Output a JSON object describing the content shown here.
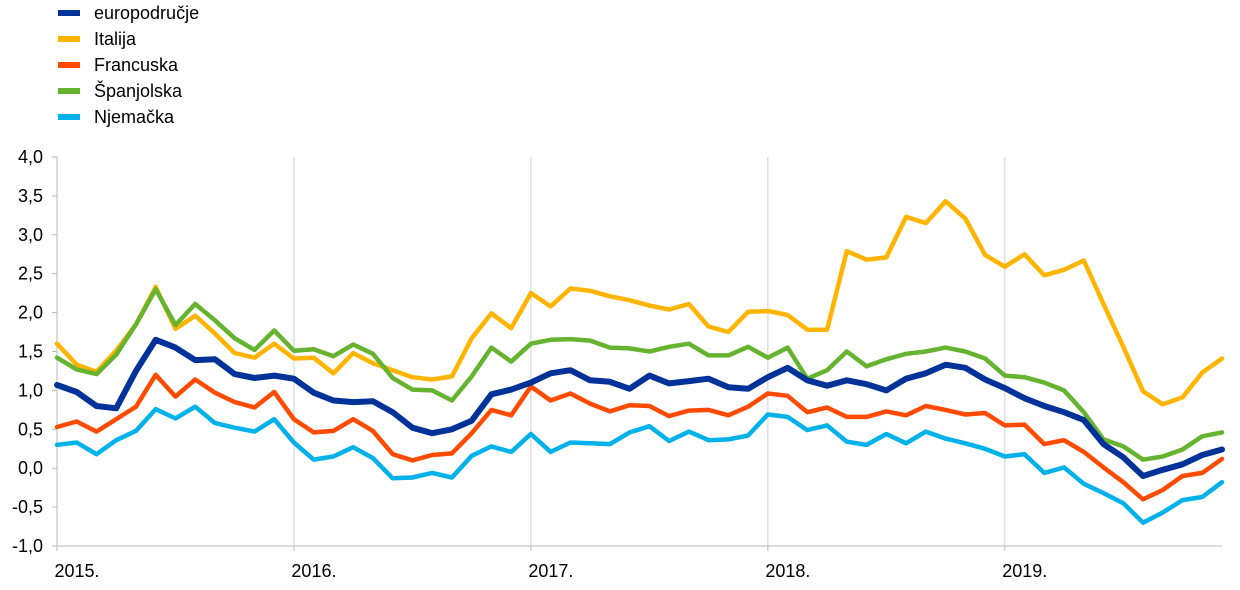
{
  "chart_data": {
    "type": "line",
    "title": "",
    "xlabel": "",
    "ylabel": "",
    "ylim": [
      -1.0,
      4.0
    ],
    "yticks": [
      "-1,0",
      "-0,5",
      "0,0",
      "0,5",
      "1,0",
      "1,5",
      "2,0",
      "2,5",
      "3,0",
      "3,5",
      "4,0"
    ],
    "xticks": [
      "2015.",
      "2016.",
      "2017.",
      "2018.",
      "2019."
    ],
    "grid": "vertical at year starts",
    "legend_position": "top-left",
    "x_period": "monthly, January 2015 to December 2019",
    "series": [
      {
        "name": "europodručje",
        "color": "#003299",
        "values": [
          1.07,
          0.98,
          0.8,
          0.77,
          1.25,
          1.65,
          1.55,
          1.39,
          1.4,
          1.21,
          1.16,
          1.19,
          1.15,
          0.97,
          0.87,
          0.85,
          0.86,
          0.72,
          0.52,
          0.45,
          0.5,
          0.61,
          0.95,
          1.01,
          1.1,
          1.22,
          1.26,
          1.13,
          1.11,
          1.02,
          1.19,
          1.09,
          1.12,
          1.15,
          1.04,
          1.02,
          1.17,
          1.29,
          1.13,
          1.06,
          1.13,
          1.08,
          1.0,
          1.15,
          1.22,
          1.33,
          1.29,
          1.14,
          1.03,
          0.9,
          0.8,
          0.72,
          0.62,
          0.31,
          0.14,
          -0.1,
          -0.02,
          0.05,
          0.17,
          0.24
        ]
      },
      {
        "name": "Italija",
        "color": "#FFB400",
        "values": [
          1.6,
          1.33,
          1.24,
          1.51,
          1.85,
          2.33,
          1.79,
          1.96,
          1.73,
          1.48,
          1.42,
          1.6,
          1.41,
          1.42,
          1.22,
          1.48,
          1.35,
          1.26,
          1.17,
          1.14,
          1.18,
          1.67,
          1.99,
          1.8,
          2.25,
          2.08,
          2.31,
          2.28,
          2.21,
          2.16,
          2.09,
          2.04,
          2.11,
          1.82,
          1.75,
          2.01,
          2.02,
          1.97,
          1.78,
          1.78,
          2.79,
          2.68,
          2.71,
          3.23,
          3.15,
          3.43,
          3.21,
          2.74,
          2.59,
          2.75,
          2.48,
          2.55,
          2.67,
          2.11,
          1.56,
          0.99,
          0.82,
          0.91,
          1.23,
          1.41
        ]
      },
      {
        "name": "Francuska",
        "color": "#FF4B00",
        "values": [
          0.53,
          0.6,
          0.47,
          0.63,
          0.79,
          1.2,
          0.92,
          1.14,
          0.97,
          0.85,
          0.78,
          0.98,
          0.63,
          0.46,
          0.48,
          0.63,
          0.48,
          0.18,
          0.1,
          0.17,
          0.19,
          0.45,
          0.75,
          0.68,
          1.05,
          0.87,
          0.96,
          0.83,
          0.73,
          0.81,
          0.8,
          0.67,
          0.74,
          0.75,
          0.68,
          0.79,
          0.96,
          0.93,
          0.72,
          0.78,
          0.66,
          0.66,
          0.73,
          0.68,
          0.8,
          0.75,
          0.69,
          0.71,
          0.55,
          0.56,
          0.31,
          0.36,
          0.21,
          0.01,
          -0.18,
          -0.4,
          -0.28,
          -0.1,
          -0.06,
          0.12
        ]
      },
      {
        "name": "Španjolska",
        "color": "#65B32E",
        "values": [
          1.42,
          1.27,
          1.21,
          1.46,
          1.85,
          2.3,
          1.84,
          2.11,
          1.9,
          1.67,
          1.52,
          1.77,
          1.51,
          1.53,
          1.44,
          1.59,
          1.47,
          1.16,
          1.01,
          1.0,
          0.87,
          1.18,
          1.55,
          1.37,
          1.6,
          1.65,
          1.66,
          1.64,
          1.55,
          1.54,
          1.5,
          1.56,
          1.6,
          1.45,
          1.45,
          1.56,
          1.42,
          1.55,
          1.15,
          1.26,
          1.5,
          1.31,
          1.4,
          1.47,
          1.5,
          1.55,
          1.5,
          1.41,
          1.19,
          1.17,
          1.1,
          1.0,
          0.72,
          0.37,
          0.28,
          0.11,
          0.15,
          0.24,
          0.41,
          0.46
        ]
      },
      {
        "name": "Njemačka",
        "color": "#00B1EA",
        "values": [
          0.3,
          0.33,
          0.18,
          0.36,
          0.48,
          0.76,
          0.64,
          0.79,
          0.58,
          0.52,
          0.47,
          0.63,
          0.33,
          0.11,
          0.15,
          0.27,
          0.13,
          -0.13,
          -0.12,
          -0.06,
          -0.12,
          0.16,
          0.28,
          0.21,
          0.44,
          0.21,
          0.33,
          0.32,
          0.31,
          0.46,
          0.54,
          0.35,
          0.47,
          0.36,
          0.37,
          0.42,
          0.69,
          0.66,
          0.49,
          0.55,
          0.34,
          0.3,
          0.44,
          0.32,
          0.47,
          0.38,
          0.32,
          0.25,
          0.15,
          0.18,
          -0.06,
          0.01,
          -0.2,
          -0.32,
          -0.45,
          -0.7,
          -0.57,
          -0.41,
          -0.37,
          -0.18
        ]
      }
    ]
  }
}
